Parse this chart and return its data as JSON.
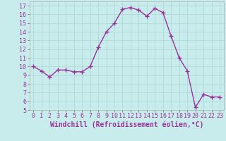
{
  "x": [
    0,
    1,
    2,
    3,
    4,
    5,
    6,
    7,
    8,
    9,
    10,
    11,
    12,
    13,
    14,
    15,
    16,
    17,
    18,
    19,
    20,
    21,
    22,
    23
  ],
  "y": [
    10.0,
    9.5,
    8.8,
    9.6,
    9.6,
    9.4,
    9.4,
    10.0,
    12.2,
    14.0,
    15.0,
    16.6,
    16.8,
    16.5,
    15.8,
    16.7,
    16.2,
    13.5,
    11.0,
    9.5,
    5.3,
    6.8,
    6.5,
    6.5
  ],
  "line_color": "#993399",
  "marker": "+",
  "marker_size": 4,
  "background_color": "#c8ecec",
  "grid_color": "#b0d8d8",
  "xlabel": "Windchill (Refroidissement éolien,°C)",
  "xlabel_fontsize": 7,
  "xlim": [
    -0.5,
    23.5
  ],
  "ylim": [
    5,
    17.5
  ],
  "yticks": [
    5,
    6,
    7,
    8,
    9,
    10,
    11,
    12,
    13,
    14,
    15,
    16,
    17
  ],
  "xticks": [
    0,
    1,
    2,
    3,
    4,
    5,
    6,
    7,
    8,
    9,
    10,
    11,
    12,
    13,
    14,
    15,
    16,
    17,
    18,
    19,
    20,
    21,
    22,
    23
  ],
  "tick_fontsize": 6,
  "line_width": 1.0
}
